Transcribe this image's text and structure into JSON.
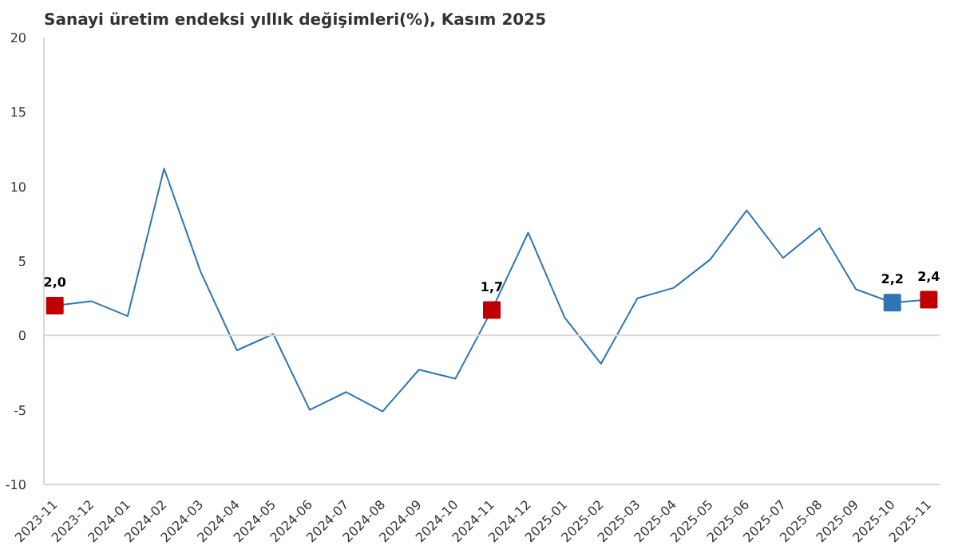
{
  "chart_data": {
    "type": "line",
    "title": "Sanayi üretim endeksi yıllık değişimleri(%), Kasım 2025",
    "categories": [
      "2023-11",
      "2023-12",
      "2024-01",
      "2024-02",
      "2024-03",
      "2024-04",
      "2024-05",
      "2024-06",
      "2024-07",
      "2024-08",
      "2024-09",
      "2024-10",
      "2024-11",
      "2024-12",
      "2025-01",
      "2025-02",
      "2025-03",
      "2025-04",
      "2025-05",
      "2025-06",
      "2025-07",
      "2025-08",
      "2025-09",
      "2025-10",
      "2025-11"
    ],
    "series": [
      {
        "color": "#2e75b6",
        "values": [
          2.0,
          2.3,
          1.3,
          11.2,
          4.3,
          -1.0,
          0.1,
          -5.0,
          -3.8,
          -5.1,
          -2.3,
          -2.9,
          1.7,
          6.9,
          1.2,
          -1.9,
          2.5,
          3.2,
          5.1,
          8.4,
          5.2,
          7.2,
          3.1,
          2.2,
          2.4
        ],
        "colors": [
          "#c00000",
          null,
          null,
          null,
          null,
          null,
          null,
          null,
          null,
          null,
          null,
          null,
          "#c00000",
          null,
          null,
          null,
          null,
          null,
          null,
          null,
          null,
          null,
          null,
          "#2e75b6",
          "#c00000"
        ],
        "value_labels": [
          "2,0",
          null,
          null,
          null,
          null,
          null,
          null,
          null,
          null,
          null,
          null,
          null,
          "1,7",
          null,
          null,
          null,
          null,
          null,
          null,
          null,
          null,
          null,
          null,
          "2,2",
          "2,4"
        ]
      }
    ],
    "ylim": [
      -10,
      20
    ],
    "yticks": [
      -10,
      -5,
      0,
      5,
      10,
      15,
      20
    ],
    "grid": false,
    "ref_lines": [
      {
        "axis": "y",
        "value": 0,
        "color": "#d9d9d9"
      }
    ]
  }
}
